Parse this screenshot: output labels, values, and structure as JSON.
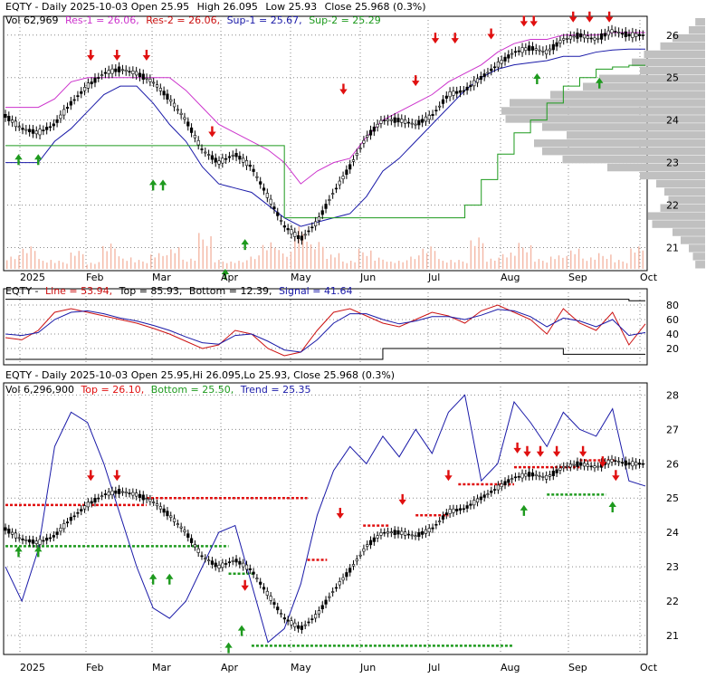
{
  "colors": {
    "up_arrow": "#1e9a1e",
    "down_arrow": "#e01010",
    "res_line": "#cc33cc",
    "sup1_line": "#1a1aa8",
    "sup2_line": "#1d9a1d",
    "volume_bar": "#f4b8a6",
    "volume_profile": "#c0c0c0",
    "candle": "#000000",
    "grid": "#888888",
    "stoch_line": "#cc1111",
    "stoch_signal": "#1a1aa8",
    "stoch_top_bottom": "#000000",
    "panel3_trend": "#1a1aa8",
    "panel3_top": "#e01010",
    "panel3_bottom": "#1e9a1e"
  },
  "panel1": {
    "line1": {
      "prefix": "EQTY - Daily 2025-10-03 Open 25.95",
      "high": "High 26.095",
      "low": "Low 25.93",
      "close": "Close 25.968 (0.3%)"
    },
    "line2": {
      "vol": "Vol 62,969",
      "res1": "Res-1 = 26.06,",
      "res2": "Res-2 = 26.06,",
      "sup1": "Sup-1 = 25.67,",
      "sup2": "Sup-2 = 25.29"
    }
  },
  "panel2": {
    "name": "EQTY -",
    "line": "Line = 53.94,",
    "top": "Top = 85.93,",
    "bottom": "Bottom = 12.39,",
    "signal": "Signal = 41.64"
  },
  "panel3": {
    "line1": "EQTY - Daily 2025-10-03 Open 25.95,Hi 26.095,Lo 25.93, Close 25.968 (0.3%)",
    "vol": "Vol 6,296,900",
    "top": "Top = 26.10,",
    "bottom": "Bottom = 25.50,",
    "trend": "Trend = 25.35"
  },
  "chart_data": [
    {
      "type": "candlestick",
      "title": "EQTY - Daily 2025-10-03 Open 25.95 High 26.095 Low 25.93 Close 25.968 (0.3%)",
      "x_labels": [
        "2025",
        "Feb",
        "Mar",
        "Apr",
        "May",
        "Jun",
        "Jul",
        "Aug",
        "Sep",
        "Oct"
      ],
      "y_ticks": [
        21,
        22,
        23,
        24,
        25,
        26
      ],
      "ylim": [
        20.5,
        26.4
      ],
      "close_path": {
        "x": [
          0,
          5,
          10,
          15,
          20,
          25,
          30,
          35,
          40,
          45,
          50,
          55,
          60,
          65,
          70,
          75,
          80,
          85,
          90,
          95,
          100,
          105,
          110,
          115,
          120,
          125,
          130,
          135,
          140,
          145,
          150,
          155,
          160,
          165,
          170,
          175,
          180,
          185,
          190,
          195
        ],
        "y": [
          24.1,
          23.8,
          23.7,
          23.9,
          24.4,
          24.8,
          25.1,
          25.2,
          25.1,
          24.9,
          24.5,
          24.0,
          23.3,
          23.0,
          23.2,
          22.9,
          22.2,
          21.5,
          21.2,
          21.6,
          22.3,
          22.9,
          23.6,
          24.0,
          24.0,
          23.9,
          24.1,
          24.6,
          24.7,
          25.0,
          25.3,
          25.6,
          25.7,
          25.6,
          25.9,
          26.0,
          25.9,
          26.1,
          26.0,
          26.0
        ]
      },
      "volume_bars": [
        30,
        55,
        22,
        18,
        40,
        15,
        62,
        28,
        20,
        35,
        48,
        25,
        80,
        20,
        18,
        30,
        65,
        42,
        95,
        60,
        35,
        20,
        45,
        25,
        18,
        30,
        55,
        22,
        20,
        70,
        25,
        40,
        58,
        22,
        30,
        45,
        28,
        35,
        20,
        50
      ],
      "volume_profile": [
        12,
        20,
        40,
        55,
        75,
        90,
        80,
        130,
        150,
        190,
        240,
        250,
        245,
        200,
        170,
        210,
        200,
        175,
        120,
        80,
        60,
        50,
        45,
        55,
        70,
        65,
        40,
        30,
        20,
        15,
        12
      ],
      "arrows": {
        "down_x": [
          26,
          34,
          43,
          63,
          103,
          125,
          131,
          137,
          148,
          158,
          161,
          173,
          178,
          184
        ],
        "down_y": [
          25.4,
          25.4,
          25.4,
          23.6,
          24.6,
          24.8,
          25.8,
          25.8,
          25.9,
          26.2,
          26.2,
          26.3,
          26.3,
          26.3
        ],
        "up_x": [
          4,
          10,
          45,
          48,
          67,
          73,
          162,
          181
        ],
        "up_y": [
          23.2,
          23.2,
          22.6,
          22.6,
          20.5,
          21.2,
          25.1,
          25.0
        ]
      },
      "series": [
        {
          "name": "Res-1",
          "values": [
            24.3,
            24.3,
            24.3,
            24.5,
            24.9,
            25.0,
            25.0,
            25.0,
            25.0,
            25.0,
            25.0,
            24.7,
            24.3,
            23.9,
            23.7,
            23.5,
            23.3,
            23.0,
            22.5,
            22.8,
            23.0,
            23.1,
            23.6,
            24.0,
            24.2,
            24.4,
            24.6,
            24.9,
            25.1,
            25.3,
            25.6,
            25.8,
            25.9,
            25.9,
            26.0,
            26.0,
            26.0,
            26.06,
            26.06,
            26.06
          ]
        },
        {
          "name": "Sup-1",
          "values": [
            23.0,
            23.0,
            23.0,
            23.5,
            23.8,
            24.2,
            24.6,
            24.8,
            24.8,
            24.4,
            23.9,
            23.5,
            22.9,
            22.5,
            22.4,
            22.3,
            22.0,
            21.7,
            21.5,
            21.6,
            21.7,
            21.8,
            22.2,
            22.8,
            23.1,
            23.5,
            23.9,
            24.3,
            24.7,
            25.0,
            25.2,
            25.3,
            25.35,
            25.4,
            25.5,
            25.5,
            25.6,
            25.65,
            25.67,
            25.67
          ]
        },
        {
          "name": "Sup-2",
          "values": [
            23.4,
            23.4,
            23.4,
            23.4,
            23.4,
            23.4,
            23.4,
            23.4,
            23.4,
            23.4,
            23.4,
            23.4,
            23.4,
            23.4,
            23.4,
            23.4,
            23.4,
            21.7,
            21.7,
            21.7,
            21.7,
            21.7,
            21.7,
            21.7,
            21.7,
            21.7,
            21.7,
            21.7,
            22.0,
            22.6,
            23.2,
            23.7,
            24.0,
            24.4,
            24.8,
            25.0,
            25.2,
            25.25,
            25.29,
            25.29
          ]
        }
      ]
    },
    {
      "type": "line",
      "title": "EQTY - Line = 53.94, Top = 85.93, Bottom = 12.39, Signal = 41.64",
      "y_ticks": [
        20,
        40,
        60,
        80
      ],
      "ylim": [
        0,
        100
      ],
      "series": [
        {
          "name": "Line",
          "values": [
            35,
            32,
            45,
            70,
            75,
            70,
            65,
            60,
            55,
            48,
            40,
            30,
            20,
            25,
            45,
            40,
            20,
            10,
            15,
            45,
            70,
            75,
            65,
            55,
            50,
            60,
            70,
            65,
            55,
            72,
            80,
            70,
            60,
            40,
            75,
            55,
            45,
            70,
            25,
            54
          ]
        },
        {
          "name": "Signal",
          "values": [
            40,
            38,
            42,
            60,
            70,
            72,
            68,
            62,
            58,
            52,
            45,
            36,
            28,
            26,
            38,
            40,
            30,
            18,
            15,
            32,
            55,
            68,
            68,
            60,
            54,
            58,
            64,
            64,
            60,
            66,
            74,
            72,
            64,
            50,
            62,
            58,
            50,
            60,
            38,
            42
          ]
        },
        {
          "name": "Top",
          "values": [
            88,
            88,
            88,
            88,
            88,
            88,
            88,
            88,
            88,
            88,
            88,
            88,
            88,
            88,
            88,
            88,
            88,
            88,
            88,
            88,
            88,
            88,
            88,
            88,
            88,
            88,
            88,
            88,
            88,
            88,
            88,
            88,
            88,
            88,
            88,
            88,
            88,
            88,
            86,
            86
          ]
        },
        {
          "name": "Bottom",
          "values": [
            5,
            5,
            5,
            5,
            5,
            5,
            5,
            5,
            5,
            5,
            5,
            5,
            5,
            5,
            5,
            5,
            5,
            5,
            5,
            5,
            5,
            5,
            5,
            20,
            20,
            20,
            20,
            20,
            20,
            20,
            20,
            20,
            20,
            20,
            12,
            12,
            12,
            12,
            12,
            12
          ]
        }
      ]
    },
    {
      "type": "candlestick",
      "title": "EQTY - Daily 2025-10-03 Open 25.95,Hi 26.095,Lo 25.93, Close 25.968 (0.3%)",
      "x_labels": [
        "2025",
        "Feb",
        "Mar",
        "Apr",
        "May",
        "Jun",
        "Jul",
        "Aug",
        "Sep",
        "Oct"
      ],
      "y_ticks": [
        21,
        22,
        23,
        24,
        25,
        26,
        27,
        28
      ],
      "ylim": [
        20.5,
        28.3
      ],
      "series": [
        {
          "name": "Trend",
          "values": [
            23.0,
            22.0,
            23.5,
            26.5,
            27.5,
            27.2,
            26.0,
            24.5,
            23.0,
            21.8,
            21.5,
            22.0,
            23.0,
            24.0,
            24.2,
            22.5,
            20.8,
            21.2,
            22.5,
            24.5,
            25.8,
            26.5,
            26.0,
            26.8,
            26.2,
            27.0,
            26.3,
            27.5,
            28.0,
            25.5,
            26.0,
            27.8,
            27.2,
            26.5,
            27.5,
            27.0,
            26.8,
            27.6,
            25.5,
            25.35
          ]
        }
      ],
      "levels": {
        "top_segments": [
          [
            0,
            43,
            24.8
          ],
          [
            43,
            92,
            25.0
          ],
          [
            92,
            98,
            23.2
          ],
          [
            109,
            117,
            24.2
          ],
          [
            125,
            135,
            24.5
          ],
          [
            138,
            155,
            25.4
          ],
          [
            155,
            175,
            25.9
          ],
          [
            175,
            186,
            26.1
          ]
        ],
        "bottom_segments": [
          [
            0,
            43,
            23.6
          ],
          [
            43,
            68,
            23.6
          ],
          [
            68,
            76,
            22.8
          ],
          [
            75,
            155,
            20.7
          ],
          [
            165,
            183,
            25.1
          ]
        ]
      },
      "arrows": {
        "down_x": [
          26,
          34,
          73,
          102,
          121,
          135,
          156,
          159,
          163,
          168,
          176,
          182,
          186
        ],
        "down_y": [
          25.5,
          25.5,
          22.3,
          24.4,
          24.8,
          25.5,
          26.3,
          26.2,
          26.2,
          26.2,
          26.2,
          25.9,
          25.5
        ],
        "up_x": [
          4,
          10,
          45,
          50,
          68,
          72,
          158,
          185
        ],
        "up_y": [
          23.6,
          23.6,
          22.8,
          22.8,
          20.8,
          21.3,
          24.8,
          24.9
        ]
      }
    }
  ]
}
